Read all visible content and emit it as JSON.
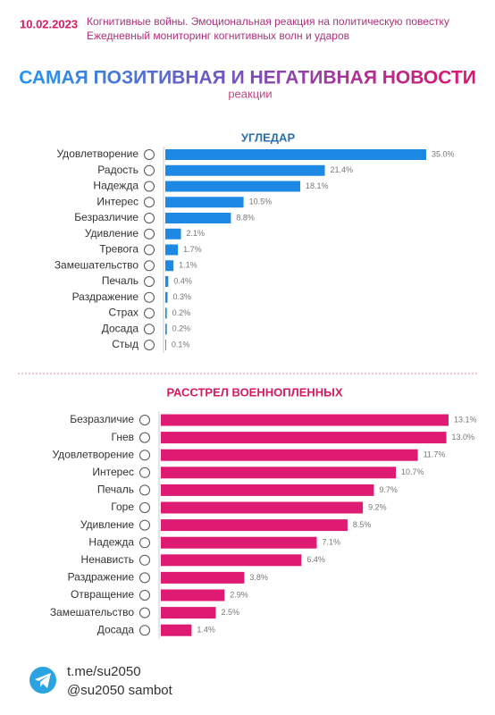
{
  "header": {
    "date": "10.02.2023",
    "lines": [
      "Когнитивные войны. Эмоциональная реакция на политическую повестку",
      "Ежедневный мониторинг когнитивных волн и ударов"
    ]
  },
  "title": "САМАЯ ПОЗИТИВНАЯ И НЕГАТИВНАЯ НОВОСТИ",
  "subtitle": "реакции",
  "chart_data": [
    {
      "type": "bar",
      "orientation": "horizontal",
      "title": "УГЛЕДАР",
      "color": "#1e88e5",
      "categories": [
        "Удовлетворение",
        "Радость",
        "Надежда",
        "Интерес",
        "Безразличие",
        "Удивление",
        "Тревога",
        "Замешательство",
        "Печаль",
        "Раздражение",
        "Страх",
        "Досада",
        "Стыд"
      ],
      "values": [
        35.0,
        21.4,
        18.1,
        10.5,
        8.8,
        2.1,
        1.7,
        1.1,
        0.4,
        0.3,
        0.2,
        0.2,
        0.1
      ],
      "value_labels": [
        "35.0%",
        "21.4%",
        "18.1%",
        "10.5%",
        "8.8%",
        "2.1%",
        "1.7%",
        "1.1%",
        "0.4%",
        "0.3%",
        "0.2%",
        "0.2%",
        "0.1%"
      ]
    },
    {
      "type": "bar",
      "orientation": "horizontal",
      "title": "РАССТРЕЛ ВОЕННОПЛЕННЫХ",
      "color": "#df1a72",
      "categories": [
        "Безразличие",
        "Гнев",
        "Удовлетворение",
        "Интерес",
        "Печаль",
        "Горе",
        "Удивление",
        "Надежда",
        "Ненависть",
        "Раздражение",
        "Отвращение",
        "Замешательство",
        "Досада"
      ],
      "values": [
        13.1,
        13.0,
        11.7,
        10.7,
        9.7,
        9.2,
        8.5,
        7.1,
        6.4,
        3.8,
        2.9,
        2.5,
        1.4
      ],
      "value_labels": [
        "13.1%",
        "13.0%",
        "11.7%",
        "10.7%",
        "9.7%",
        "9.2%",
        "8.5%",
        "7.1%",
        "6.4%",
        "3.8%",
        "2.9%",
        "2.5%",
        "1.4%"
      ]
    }
  ],
  "footer": {
    "links": [
      "t.me/su2050",
      "@su2050 sambot"
    ]
  }
}
